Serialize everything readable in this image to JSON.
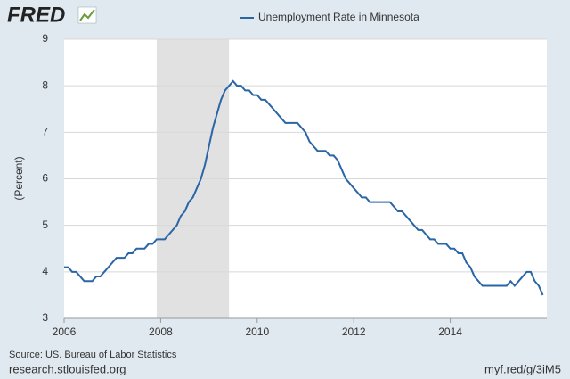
{
  "logo": "FRED",
  "source": "Source: US. Bureau of Labor Statistics",
  "footer_left": "research.stlouisfed.org",
  "footer_right": "myf.red/g/3iM5",
  "chart_data": {
    "type": "line",
    "y_label": "(Percent)",
    "x": [
      "2006-01",
      "2006-02",
      "2006-03",
      "2006-04",
      "2006-05",
      "2006-06",
      "2006-07",
      "2006-08",
      "2006-09",
      "2006-10",
      "2006-11",
      "2006-12",
      "2007-01",
      "2007-02",
      "2007-03",
      "2007-04",
      "2007-05",
      "2007-06",
      "2007-07",
      "2007-08",
      "2007-09",
      "2007-10",
      "2007-11",
      "2007-12",
      "2008-01",
      "2008-02",
      "2008-03",
      "2008-04",
      "2008-05",
      "2008-06",
      "2008-07",
      "2008-08",
      "2008-09",
      "2008-10",
      "2008-11",
      "2008-12",
      "2009-01",
      "2009-02",
      "2009-03",
      "2009-04",
      "2009-05",
      "2009-06",
      "2009-07",
      "2009-08",
      "2009-09",
      "2009-10",
      "2009-11",
      "2009-12",
      "2010-01",
      "2010-02",
      "2010-03",
      "2010-04",
      "2010-05",
      "2010-06",
      "2010-07",
      "2010-08",
      "2010-09",
      "2010-10",
      "2010-11",
      "2010-12",
      "2011-01",
      "2011-02",
      "2011-03",
      "2011-04",
      "2011-05",
      "2011-06",
      "2011-07",
      "2011-08",
      "2011-09",
      "2011-10",
      "2011-11",
      "2011-12",
      "2012-01",
      "2012-02",
      "2012-03",
      "2012-04",
      "2012-05",
      "2012-06",
      "2012-07",
      "2012-08",
      "2012-09",
      "2012-10",
      "2012-11",
      "2012-12",
      "2013-01",
      "2013-02",
      "2013-03",
      "2013-04",
      "2013-05",
      "2013-06",
      "2013-07",
      "2013-08",
      "2013-09",
      "2013-10",
      "2013-11",
      "2013-12",
      "2014-01",
      "2014-02",
      "2014-03",
      "2014-04",
      "2014-05",
      "2014-06",
      "2014-07",
      "2014-08",
      "2014-09",
      "2014-10",
      "2014-11",
      "2014-12",
      "2015-01",
      "2015-02",
      "2015-03",
      "2015-04",
      "2015-05",
      "2015-06",
      "2015-07",
      "2015-08",
      "2015-09",
      "2015-10",
      "2015-11",
      "2015-12"
    ],
    "series": [
      {
        "name": "Unemployment Rate in Minnesota",
        "color": "#2a65a6",
        "values": [
          4.1,
          4.1,
          4.0,
          4.0,
          3.9,
          3.8,
          3.8,
          3.8,
          3.9,
          3.9,
          4.0,
          4.1,
          4.2,
          4.3,
          4.3,
          4.3,
          4.4,
          4.4,
          4.5,
          4.5,
          4.5,
          4.6,
          4.6,
          4.7,
          4.7,
          4.7,
          4.8,
          4.9,
          5.0,
          5.2,
          5.3,
          5.5,
          5.6,
          5.8,
          6.0,
          6.3,
          6.7,
          7.1,
          7.4,
          7.7,
          7.9,
          8.0,
          8.1,
          8.0,
          8.0,
          7.9,
          7.9,
          7.8,
          7.8,
          7.7,
          7.7,
          7.6,
          7.5,
          7.4,
          7.3,
          7.2,
          7.2,
          7.2,
          7.2,
          7.1,
          7.0,
          6.8,
          6.7,
          6.6,
          6.6,
          6.6,
          6.5,
          6.5,
          6.4,
          6.2,
          6.0,
          5.9,
          5.8,
          5.7,
          5.6,
          5.6,
          5.5,
          5.5,
          5.5,
          5.5,
          5.5,
          5.5,
          5.4,
          5.3,
          5.3,
          5.2,
          5.1,
          5.0,
          4.9,
          4.9,
          4.8,
          4.7,
          4.7,
          4.6,
          4.6,
          4.6,
          4.5,
          4.5,
          4.4,
          4.4,
          4.2,
          4.1,
          3.9,
          3.8,
          3.7,
          3.7,
          3.7,
          3.7,
          3.7,
          3.7,
          3.7,
          3.8,
          3.7,
          3.8,
          3.9,
          4.0,
          4.0,
          3.8,
          3.7,
          3.5
        ]
      }
    ],
    "xlim": [
      "2006-01",
      "2016-01"
    ],
    "xticks": [
      2006,
      2008,
      2010,
      2012,
      2014
    ],
    "ylim": [
      3,
      9
    ],
    "yticks": [
      3,
      4,
      5,
      6,
      7,
      8,
      9
    ],
    "grid": true,
    "shaded_range": [
      "2007-12",
      "2009-06"
    ],
    "shade_color": "#e1e1e1"
  }
}
